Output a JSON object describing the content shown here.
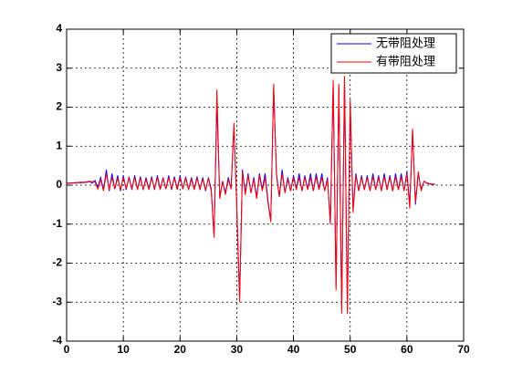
{
  "chart_data": {
    "type": "line",
    "x": [
      0,
      0.5,
      1,
      1.5,
      2,
      2.5,
      3,
      3.5,
      4,
      4.5,
      5,
      5.5,
      6,
      6.5,
      7,
      7.5,
      8,
      8.5,
      9,
      9.5,
      10,
      10.5,
      11,
      11.5,
      12,
      12.5,
      13,
      13.5,
      14,
      14.5,
      15,
      15.5,
      16,
      16.5,
      17,
      17.5,
      18,
      18.5,
      19,
      19.5,
      20,
      20.5,
      21,
      21.5,
      22,
      22.5,
      23,
      23.5,
      24,
      24.5,
      25,
      25.5,
      26,
      26.5,
      27,
      27.5,
      28,
      28.5,
      29,
      29.5,
      30,
      30.5,
      31,
      31.5,
      32,
      32.5,
      33,
      33.5,
      34,
      34.5,
      35,
      35.5,
      36,
      36.5,
      37,
      37.5,
      38,
      38.5,
      39,
      39.5,
      40,
      40.5,
      41,
      41.5,
      42,
      42.5,
      43,
      43.5,
      44,
      44.5,
      45,
      45.5,
      46,
      46.5,
      47,
      47.5,
      48,
      48.5,
      49,
      49.5,
      50,
      50.5,
      51,
      51.5,
      52,
      52.5,
      53,
      53.5,
      54,
      54.5,
      55,
      55.5,
      56,
      56.5,
      57,
      57.5,
      58,
      58.5,
      59,
      59.5,
      60,
      60.5,
      61,
      61.5,
      62,
      62.5,
      63,
      63.5,
      64,
      64.5,
      65
    ],
    "series": [
      {
        "name": "无带阻处理",
        "color": "#0000ff",
        "values": [
          0.05,
          0.05,
          0.06,
          0.05,
          0.07,
          0.06,
          0.08,
          0.07,
          0.1,
          0.05,
          0.12,
          -0.05,
          0.2,
          -0.12,
          0.4,
          -0.15,
          0.3,
          -0.1,
          0.25,
          -0.15,
          0.25,
          -0.12,
          0.22,
          -0.12,
          0.25,
          -0.1,
          0.22,
          -0.12,
          0.2,
          -0.1,
          0.22,
          -0.12,
          0.25,
          -0.1,
          0.2,
          -0.1,
          0.25,
          -0.12,
          0.22,
          -0.1,
          0.25,
          -0.1,
          0.22,
          -0.12,
          0.2,
          -0.1,
          0.22,
          -0.12,
          0.2,
          -0.15,
          0.2,
          -0.1,
          -1.3,
          2.1,
          -0.3,
          0.1,
          -0.2,
          0.2,
          -0.1,
          1.5,
          -0.5,
          -2.9,
          0.4,
          -0.2,
          0.3,
          -0.2,
          0.2,
          -0.3,
          0.3,
          -0.1,
          0.3,
          -0.4,
          -0.9,
          2.5,
          0.3,
          -0.3,
          0.4,
          -0.2,
          0.2,
          -0.15,
          0.25,
          -0.1,
          0.3,
          -0.15,
          0.25,
          -0.1,
          0.3,
          -0.15,
          0.3,
          -0.1,
          0.3,
          -0.15,
          0.2,
          -1.0,
          2.6,
          -2.6,
          2.5,
          -3.2,
          2.7,
          -3.2,
          2.1,
          -0.6,
          0.3,
          -0.15,
          0.25,
          -0.12,
          0.25,
          -0.15,
          0.3,
          -0.12,
          0.25,
          -0.15,
          0.3,
          -0.12,
          0.25,
          -0.15,
          0.3,
          -0.12,
          0.3,
          -0.15,
          0.35,
          -0.5,
          1.4,
          -0.5,
          0.3,
          -0.1,
          0.1,
          0.05,
          0.03,
          0.02,
          0.02
        ]
      },
      {
        "name": "有带阻处理",
        "color": "#ff0000",
        "values": [
          0.05,
          0.06,
          0.05,
          0.07,
          0.06,
          0.08,
          0.06,
          0.09,
          0.08,
          0.1,
          0.08,
          -0.1,
          0.15,
          -0.15,
          0.3,
          -0.12,
          0.2,
          -0.1,
          0.18,
          -0.12,
          0.2,
          -0.1,
          0.18,
          -0.1,
          0.2,
          -0.12,
          0.18,
          -0.1,
          0.15,
          -0.12,
          0.18,
          -0.1,
          0.2,
          -0.12,
          0.18,
          -0.1,
          0.2,
          -0.1,
          0.18,
          -0.12,
          0.2,
          -0.1,
          0.18,
          -0.1,
          0.15,
          -0.12,
          0.18,
          -0.1,
          0.15,
          -0.12,
          0.18,
          -0.15,
          -1.35,
          2.45,
          -0.35,
          0.1,
          -0.25,
          0.15,
          -0.1,
          1.6,
          -0.6,
          -3.0,
          0.35,
          -0.25,
          0.25,
          -0.2,
          0.15,
          -0.35,
          0.25,
          -0.15,
          0.2,
          -0.45,
          -0.95,
          2.6,
          0.25,
          -0.3,
          0.3,
          -0.2,
          0.15,
          -0.15,
          0.2,
          -0.12,
          0.2,
          -0.15,
          0.2,
          -0.12,
          0.2,
          -0.15,
          0.22,
          -0.12,
          0.2,
          -0.15,
          0.15,
          -1.0,
          2.7,
          -2.7,
          2.6,
          -3.3,
          2.8,
          -3.3,
          2.2,
          -0.7,
          0.25,
          -0.15,
          0.2,
          -0.12,
          0.2,
          -0.15,
          0.22,
          -0.12,
          0.2,
          -0.15,
          0.22,
          -0.12,
          0.2,
          -0.15,
          0.22,
          -0.12,
          0.22,
          -0.15,
          0.3,
          -0.6,
          1.45,
          -0.45,
          0.35,
          -0.15,
          0.1,
          0.06,
          0.04,
          0.03,
          0.02
        ]
      }
    ],
    "xlim": [
      0,
      70
    ],
    "xticks": [
      0,
      10,
      20,
      30,
      40,
      50,
      60,
      70
    ],
    "ylim": [
      -4,
      4
    ],
    "yticks": [
      -4,
      -3,
      -2,
      -1,
      0,
      1,
      2,
      3,
      4
    ],
    "grid": true,
    "legend": "northeast"
  }
}
